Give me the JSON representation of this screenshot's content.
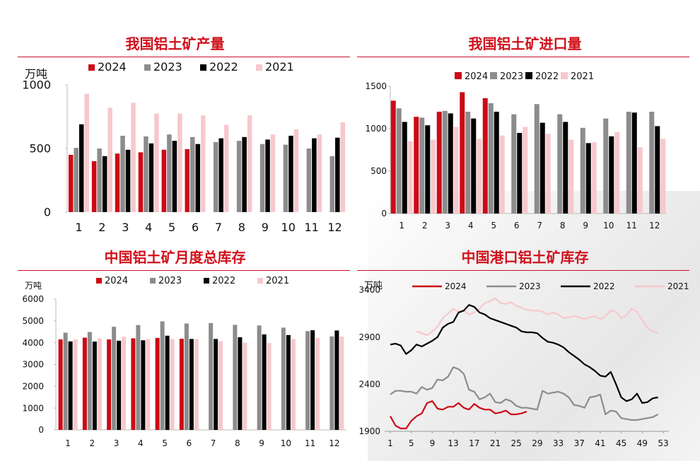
{
  "chart_data": [
    {
      "type": "bar",
      "title": "我国铝土矿产量",
      "ylabel": "万吨",
      "categories": [
        "1",
        "2",
        "3",
        "4",
        "5",
        "6",
        "7",
        "8",
        "9",
        "10",
        "11",
        "12"
      ],
      "ylim": [
        0,
        1000
      ],
      "yticks": [
        "0",
        "500",
        "1000"
      ],
      "legend": "top",
      "grid": false,
      "series": [
        {
          "name": "2024",
          "color": "#cc0a15",
          "values": [
            450,
            400,
            460,
            470,
            490,
            495,
            null,
            null,
            null,
            null,
            null,
            null
          ]
        },
        {
          "name": "2023",
          "color": "#8c8c8c",
          "values": [
            505,
            500,
            600,
            595,
            610,
            590,
            550,
            560,
            535,
            530,
            500,
            440
          ]
        },
        {
          "name": "2022",
          "color": "#000000",
          "values": [
            690,
            440,
            490,
            540,
            560,
            535,
            580,
            590,
            570,
            600,
            580,
            585
          ]
        },
        {
          "name": "2021",
          "color": "#f7c8cc",
          "values": [
            930,
            820,
            860,
            775,
            775,
            760,
            685,
            760,
            610,
            650,
            610,
            705
          ]
        }
      ]
    },
    {
      "type": "bar",
      "title": "我国铝土矿进口量",
      "categories": [
        "1",
        "2",
        "3",
        "4",
        "5",
        "6",
        "7",
        "8",
        "9",
        "10",
        "11",
        "12"
      ],
      "ylim": [
        0,
        1500
      ],
      "yticks": [
        "0",
        "500",
        "1000",
        "1500"
      ],
      "legend": "top",
      "grid": false,
      "series": [
        {
          "name": "2024",
          "color": "#cc0a15",
          "values": [
            1330,
            1140,
            1200,
            1430,
            1360,
            null,
            null,
            null,
            null,
            null,
            null,
            null
          ]
        },
        {
          "name": "2023",
          "color": "#8c8c8c",
          "values": [
            1240,
            1130,
            1210,
            1200,
            1300,
            1170,
            1290,
            1170,
            1010,
            1120,
            1200,
            1200
          ]
        },
        {
          "name": "2022",
          "color": "#000000",
          "values": [
            1080,
            1040,
            1180,
            1120,
            1200,
            950,
            1070,
            1080,
            830,
            910,
            1190,
            1030
          ]
        },
        {
          "name": "2021",
          "color": "#f7c8cc",
          "values": [
            850,
            870,
            1020,
            880,
            920,
            1020,
            940,
            870,
            840,
            960,
            780,
            880
          ]
        }
      ]
    },
    {
      "type": "bar",
      "title": "中国铝土矿月度总库存",
      "ylabel": "万吨",
      "categories": [
        "1",
        "2",
        "3",
        "4",
        "5",
        "6",
        "7",
        "8",
        "9",
        "10",
        "11",
        "12"
      ],
      "ylim": [
        0,
        6000
      ],
      "yticks": [
        "0",
        "1000",
        "2000",
        "3000",
        "4000",
        "5000",
        "6000"
      ],
      "legend": "top",
      "grid": false,
      "series": [
        {
          "name": "2024",
          "color": "#cc0a15",
          "values": [
            4150,
            4230,
            4150,
            4200,
            4220,
            4180,
            null,
            null,
            null,
            null,
            null,
            null
          ]
        },
        {
          "name": "2023",
          "color": "#8c8c8c",
          "values": [
            4460,
            4490,
            4730,
            4810,
            4980,
            4880,
            4900,
            4820,
            4790,
            4690,
            4530,
            4290
          ]
        },
        {
          "name": "2022",
          "color": "#000000",
          "values": [
            4060,
            4050,
            4090,
            4110,
            4320,
            4170,
            4170,
            4250,
            4380,
            4350,
            4570,
            4560
          ]
        },
        {
          "name": "2021",
          "color": "#f7c8cc",
          "values": [
            4150,
            4190,
            4270,
            4170,
            4170,
            4170,
            4070,
            4010,
            3980,
            4170,
            4220,
            4280
          ]
        }
      ]
    },
    {
      "type": "line",
      "title": "中国港口铝土矿库存",
      "ylabel": "万吨",
      "xlim": [
        1,
        53
      ],
      "ylim": [
        1900,
        3400
      ],
      "xticks": [
        "1",
        "5",
        "9",
        "13",
        "17",
        "21",
        "25",
        "29",
        "33",
        "37",
        "41",
        "45",
        "49",
        "53"
      ],
      "yticks": [
        "1900",
        "2400",
        "2900",
        "3400"
      ],
      "legend": "top",
      "grid": false,
      "series": [
        {
          "name": "2024",
          "color": "#cc0a15",
          "x": [
            1,
            2,
            3,
            4,
            5,
            6,
            7,
            8,
            9,
            10,
            11,
            12,
            13,
            14,
            15,
            16,
            17,
            18,
            19,
            20,
            21,
            22,
            23,
            24,
            25,
            26,
            27
          ],
          "y": [
            2060,
            1960,
            1930,
            1930,
            2010,
            2060,
            2090,
            2200,
            2220,
            2140,
            2130,
            2160,
            2160,
            2200,
            2150,
            2130,
            2190,
            2150,
            2130,
            2130,
            2090,
            2100,
            2120,
            2080,
            2080,
            2090,
            2110
          ]
        },
        {
          "name": "2023",
          "color": "#8c8c8c",
          "x": [
            1,
            2,
            3,
            4,
            5,
            6,
            7,
            8,
            9,
            10,
            11,
            12,
            13,
            14,
            15,
            16,
            17,
            18,
            19,
            20,
            21,
            22,
            23,
            24,
            25,
            26,
            27,
            28,
            29,
            30,
            31,
            32,
            33,
            34,
            35,
            36,
            37,
            38,
            39,
            40,
            41,
            42,
            43,
            44,
            45,
            46,
            47,
            48,
            49,
            50,
            51,
            52
          ],
          "y": [
            2290,
            2330,
            2330,
            2320,
            2320,
            2300,
            2370,
            2340,
            2360,
            2450,
            2440,
            2480,
            2580,
            2560,
            2510,
            2340,
            2320,
            2240,
            2260,
            2300,
            2210,
            2200,
            2240,
            2220,
            2170,
            2150,
            2150,
            2140,
            2130,
            2330,
            2300,
            2310,
            2320,
            2300,
            2260,
            2180,
            2170,
            2150,
            2260,
            2270,
            2290,
            2080,
            2120,
            2110,
            2040,
            2030,
            2020,
            2020,
            2030,
            2040,
            2050,
            2080
          ]
        },
        {
          "name": "2022",
          "color": "#000000",
          "x": [
            1,
            2,
            3,
            4,
            5,
            6,
            7,
            8,
            9,
            10,
            11,
            12,
            13,
            14,
            15,
            16,
            17,
            18,
            19,
            20,
            21,
            22,
            23,
            24,
            25,
            26,
            27,
            28,
            29,
            30,
            31,
            32,
            33,
            34,
            35,
            36,
            37,
            38,
            39,
            40,
            41,
            42,
            43,
            44,
            45,
            46,
            47,
            48,
            49,
            50,
            51,
            52
          ],
          "y": [
            2820,
            2830,
            2810,
            2720,
            2760,
            2820,
            2800,
            2830,
            2860,
            2900,
            3000,
            3040,
            3060,
            3160,
            3180,
            3240,
            3220,
            3160,
            3140,
            3100,
            3080,
            3060,
            3040,
            3020,
            3000,
            2960,
            2950,
            2950,
            2940,
            2890,
            2850,
            2840,
            2820,
            2790,
            2740,
            2700,
            2660,
            2610,
            2580,
            2540,
            2490,
            2480,
            2530,
            2400,
            2260,
            2220,
            2240,
            2300,
            2200,
            2210,
            2250,
            2260
          ]
        },
        {
          "name": "2021",
          "color": "#f7c8cc",
          "x": [
            6,
            7,
            8,
            9,
            10,
            11,
            12,
            13,
            14,
            15,
            16,
            17,
            18,
            19,
            20,
            21,
            22,
            23,
            24,
            25,
            26,
            27,
            28,
            29,
            30,
            31,
            32,
            33,
            34,
            35,
            36,
            37,
            38,
            39,
            40,
            41,
            42,
            43,
            44,
            45,
            46,
            47,
            48,
            49,
            50,
            51,
            52
          ],
          "y": [
            2960,
            2940,
            2920,
            2960,
            3010,
            3100,
            3150,
            3200,
            3170,
            3180,
            3140,
            3160,
            3200,
            3260,
            3280,
            3310,
            3260,
            3250,
            3270,
            3230,
            3210,
            3190,
            3180,
            3180,
            3170,
            3140,
            3160,
            3140,
            3100,
            3110,
            3120,
            3110,
            3090,
            3110,
            3120,
            3090,
            3120,
            3180,
            3170,
            3100,
            3130,
            3200,
            3170,
            3080,
            3000,
            2960,
            2940
          ]
        }
      ]
    }
  ]
}
